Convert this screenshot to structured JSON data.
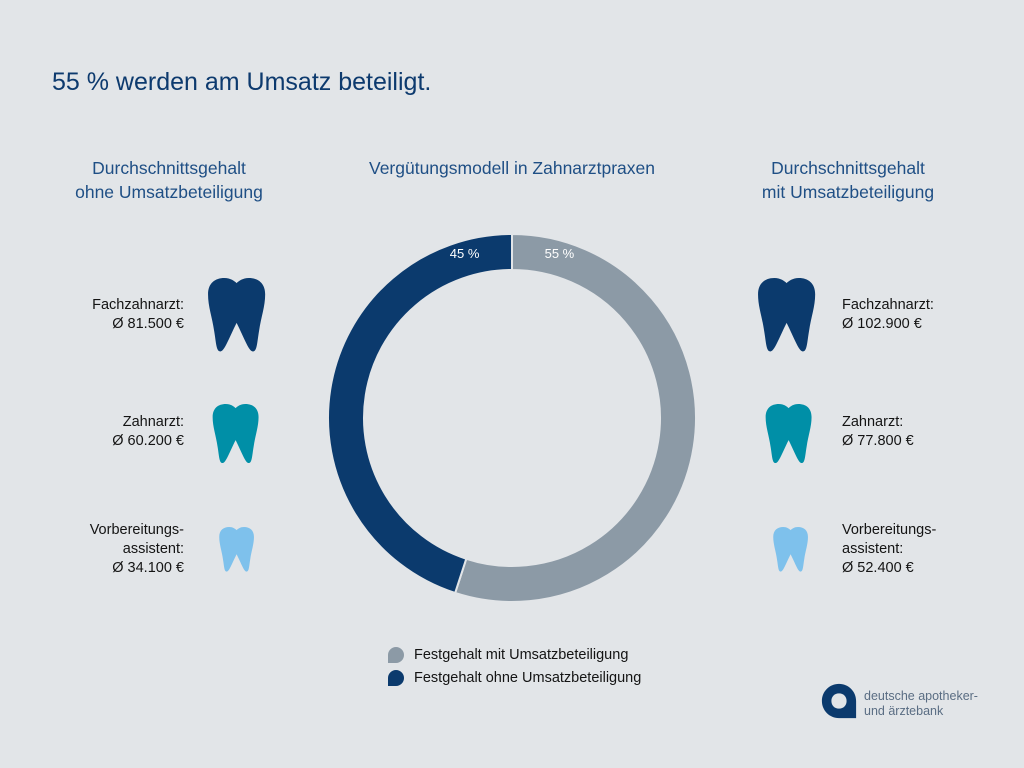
{
  "headline": "55 % werden am Umsatz beteiligt.",
  "left_column": {
    "heading_line1": "Durchschnittsgehalt",
    "heading_line2": "ohne Umsatzbeteiligung",
    "items": [
      {
        "role": "Fachzahnarzt:",
        "salary": "Ø 81.500 €"
      },
      {
        "role": "Zahnarzt:",
        "salary": "Ø 60.200 €"
      },
      {
        "role_line1": "Vorbereitungs-",
        "role_line2": "assistent:",
        "salary": "Ø 34.100 €"
      }
    ]
  },
  "right_column": {
    "heading_line1": "Durchschnittsgehalt",
    "heading_line2": "mit Umsatzbeteiligung",
    "items": [
      {
        "role": "Fachzahnarzt:",
        "salary": "Ø 102.900 €"
      },
      {
        "role": "Zahnarzt:",
        "salary": "Ø 77.800 €"
      },
      {
        "role_line1": "Vorbereitungs-",
        "role_line2": "assistent:",
        "salary": "Ø 52.400 €"
      }
    ]
  },
  "tooth_icons": {
    "left": [
      "tooth-icon",
      "tooth-icon",
      "tooth-icon"
    ],
    "right": [
      "tooth-icon",
      "tooth-icon",
      "tooth-icon"
    ],
    "colors": [
      "#0b3a6d",
      "#008fa7",
      "#7ec1ec"
    ]
  },
  "chart_data": {
    "type": "pie",
    "subtype": "donut",
    "title": "Vergütungsmodell in Zahnarztpraxen",
    "slices": [
      {
        "label": "Festgehalt mit Umsatzbeteiligung",
        "value": 55,
        "display": "55 %",
        "color": "#8c9aa6"
      },
      {
        "label": "Festgehalt ohne Umsatzbeteiligung",
        "value": 45,
        "display": "45 %",
        "color": "#0b3a6d"
      }
    ],
    "legend_placement": "bottom"
  },
  "logo": {
    "mark_icon": "apobank-logo-icon",
    "line1": "deutsche apotheker-",
    "line2": "und ärztebank",
    "color": "#0b3a6d"
  }
}
